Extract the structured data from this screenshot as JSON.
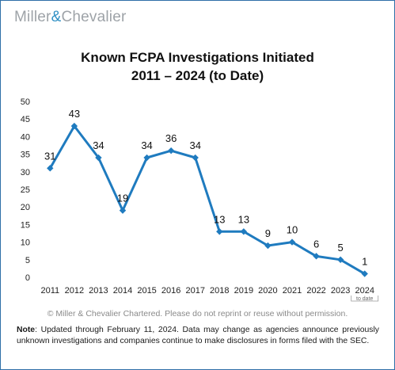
{
  "logo": {
    "name_left": "Miller",
    "ampersand": "&",
    "name_right": "Chevalier"
  },
  "chart_data": {
    "type": "line",
    "title_line_1": "Known FCPA Investigations Initiated",
    "title_line_2": "2011 – 2024 (to Date)",
    "categories": [
      "2011",
      "2012",
      "2013",
      "2014",
      "2015",
      "2016",
      "2017",
      "2018",
      "2019",
      "2020",
      "2021",
      "2022",
      "2023",
      "2024"
    ],
    "values": [
      31,
      43,
      34,
      19,
      34,
      36,
      34,
      13,
      13,
      9,
      10,
      6,
      5,
      1
    ],
    "data_labels": [
      "31",
      "43",
      "34",
      "19",
      "34",
      "36",
      "34",
      "13",
      "13",
      "9",
      "10",
      "6",
      "5",
      "1"
    ],
    "y_ticks": [
      "0",
      "5",
      "10",
      "15",
      "20",
      "25",
      "30",
      "35",
      "40",
      "45",
      "50"
    ],
    "ylim": [
      0,
      50
    ],
    "grid": false,
    "x_annotation": "to date",
    "annotated_category": "2024",
    "colors": {
      "line": "#1f7bbf",
      "marker": "#1f7bbf"
    },
    "marker": "diamond"
  },
  "footer": {
    "copyright": "© Miller & Chevalier Chartered. Please do not reprint or reuse without permission.",
    "note_label": "Note",
    "note_text": ": Updated through February 11, 2024. Data may change as agencies announce previously unknown investigations and companies continue to make disclosures in forms filed with the SEC."
  }
}
